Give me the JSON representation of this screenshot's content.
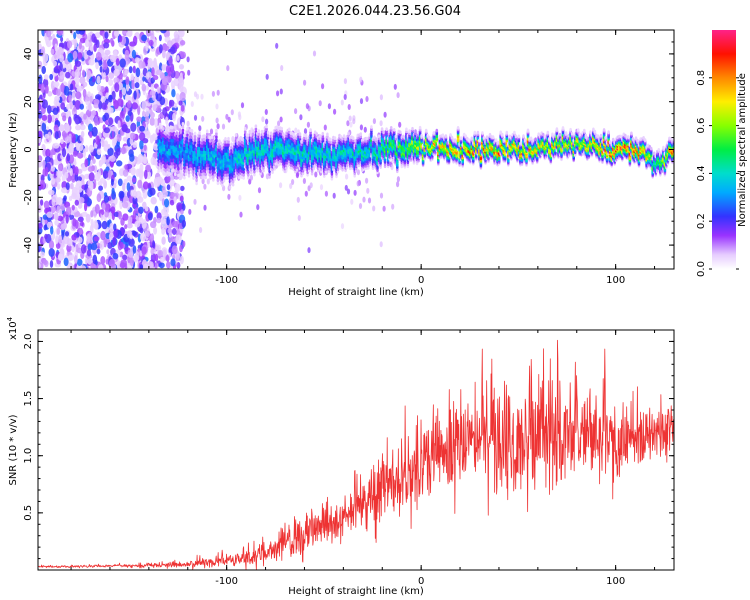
{
  "title": "C2E1.2026.044.23.56.G04",
  "colorbar": {
    "label": "Normalized spectral amplitude",
    "ticks": [
      "0.0",
      "0.2",
      "0.4",
      "0.6",
      "0.8"
    ],
    "tick_values": [
      0.0,
      0.2,
      0.4,
      0.6,
      0.8
    ],
    "range": [
      0,
      1
    ]
  },
  "chart_data": [
    {
      "type": "heatmap",
      "xlabel": "Height of straight line (km)",
      "ylabel": "Frequency (Hz)",
      "xlim": [
        -197,
        130
      ],
      "ylim": [
        -50,
        50
      ],
      "xticks": [
        -100,
        0,
        100
      ],
      "xtick_labels": [
        "-100",
        "0",
        "100"
      ],
      "yticks": [
        -40,
        -20,
        0,
        20,
        40
      ],
      "ytick_labels": [
        "-40",
        "-20",
        "0",
        "20",
        "40"
      ],
      "ridge": {
        "description_x": [
          -130,
          -100,
          -80,
          -50,
          -30,
          -10,
          10,
          40,
          70,
          80,
          100,
          115,
          120,
          130
        ],
        "center_freq_hz": [
          0,
          -5,
          0,
          -2,
          -1,
          1,
          1,
          0,
          1,
          3,
          0,
          0,
          -8,
          -1
        ],
        "peak_amplitude": [
          0.35,
          0.4,
          0.45,
          0.45,
          0.45,
          0.6,
          0.8,
          0.85,
          0.75,
          0.7,
          0.95,
          0.85,
          0.5,
          0.9
        ]
      }
    },
    {
      "type": "line",
      "xlabel": "Height of straight line (km)",
      "ylabel": "SNR (10 * v/v)",
      "multiplier_base": "x10",
      "multiplier_exp": "4",
      "xlim": [
        -197,
        130
      ],
      "ylim": [
        0,
        2.1
      ],
      "xticks": [
        -100,
        0,
        100
      ],
      "xtick_labels": [
        "-100",
        "0",
        "100"
      ],
      "yticks": [
        0.5,
        1.0,
        1.5,
        2.0
      ],
      "ytick_labels": [
        "0.5",
        "1.0",
        "1.5",
        "2.0"
      ],
      "color": "#ee3333",
      "series": [
        {
          "name": "SNR",
          "x": [
            -197,
            -180,
            -160,
            -140,
            -120,
            -100,
            -80,
            -60,
            -40,
            -20,
            0,
            20,
            40,
            60,
            80,
            100,
            120,
            130
          ],
          "mean": [
            0.03,
            0.03,
            0.035,
            0.04,
            0.05,
            0.08,
            0.15,
            0.3,
            0.45,
            0.7,
            0.95,
            1.15,
            1.2,
            1.2,
            1.2,
            1.15,
            1.2,
            1.25
          ],
          "spread": [
            0.01,
            0.01,
            0.01,
            0.02,
            0.03,
            0.05,
            0.1,
            0.15,
            0.2,
            0.3,
            0.35,
            0.4,
            0.45,
            0.45,
            0.45,
            0.35,
            0.25,
            0.15
          ]
        }
      ]
    }
  ]
}
